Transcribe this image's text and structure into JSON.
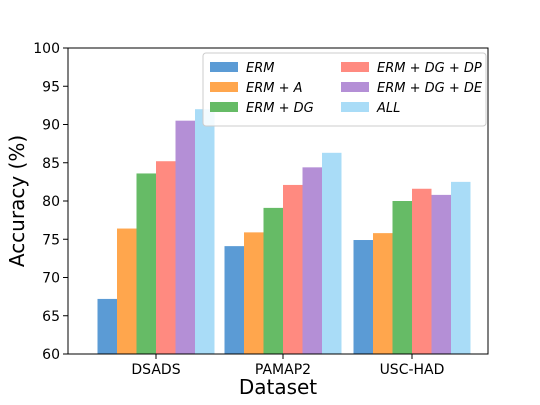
{
  "chart_data": {
    "type": "bar",
    "xlabel": "Dataset",
    "ylabel": "Accuracy (%)",
    "categories": [
      "DSADS",
      "PAMAP2",
      "USC-HAD"
    ],
    "ylim": [
      60,
      100
    ],
    "yticks": [
      "60",
      "65",
      "70",
      "75",
      "80",
      "85",
      "90",
      "95",
      "100"
    ],
    "grid": false,
    "legend_position": "top-right",
    "series": [
      {
        "name": "ERM",
        "color": "#5b9bd5",
        "values": [
          67.2,
          74.1,
          74.9
        ]
      },
      {
        "name": "ERM + A",
        "color": "#ffa64d",
        "values": [
          76.4,
          75.9,
          75.8
        ]
      },
      {
        "name": "ERM + DG",
        "color": "#66bb66",
        "values": [
          83.6,
          79.1,
          80.0
        ]
      },
      {
        "name": "ERM + DG + DP",
        "color": "#ff8a80",
        "values": [
          85.2,
          82.1,
          81.6
        ]
      },
      {
        "name": "ERM + DG + DE",
        "color": "#b48fd6",
        "values": [
          90.5,
          84.4,
          80.8
        ]
      },
      {
        "name": "ALL",
        "color": "#a9dcf7",
        "values": [
          92.0,
          86.3,
          82.5
        ]
      }
    ]
  }
}
